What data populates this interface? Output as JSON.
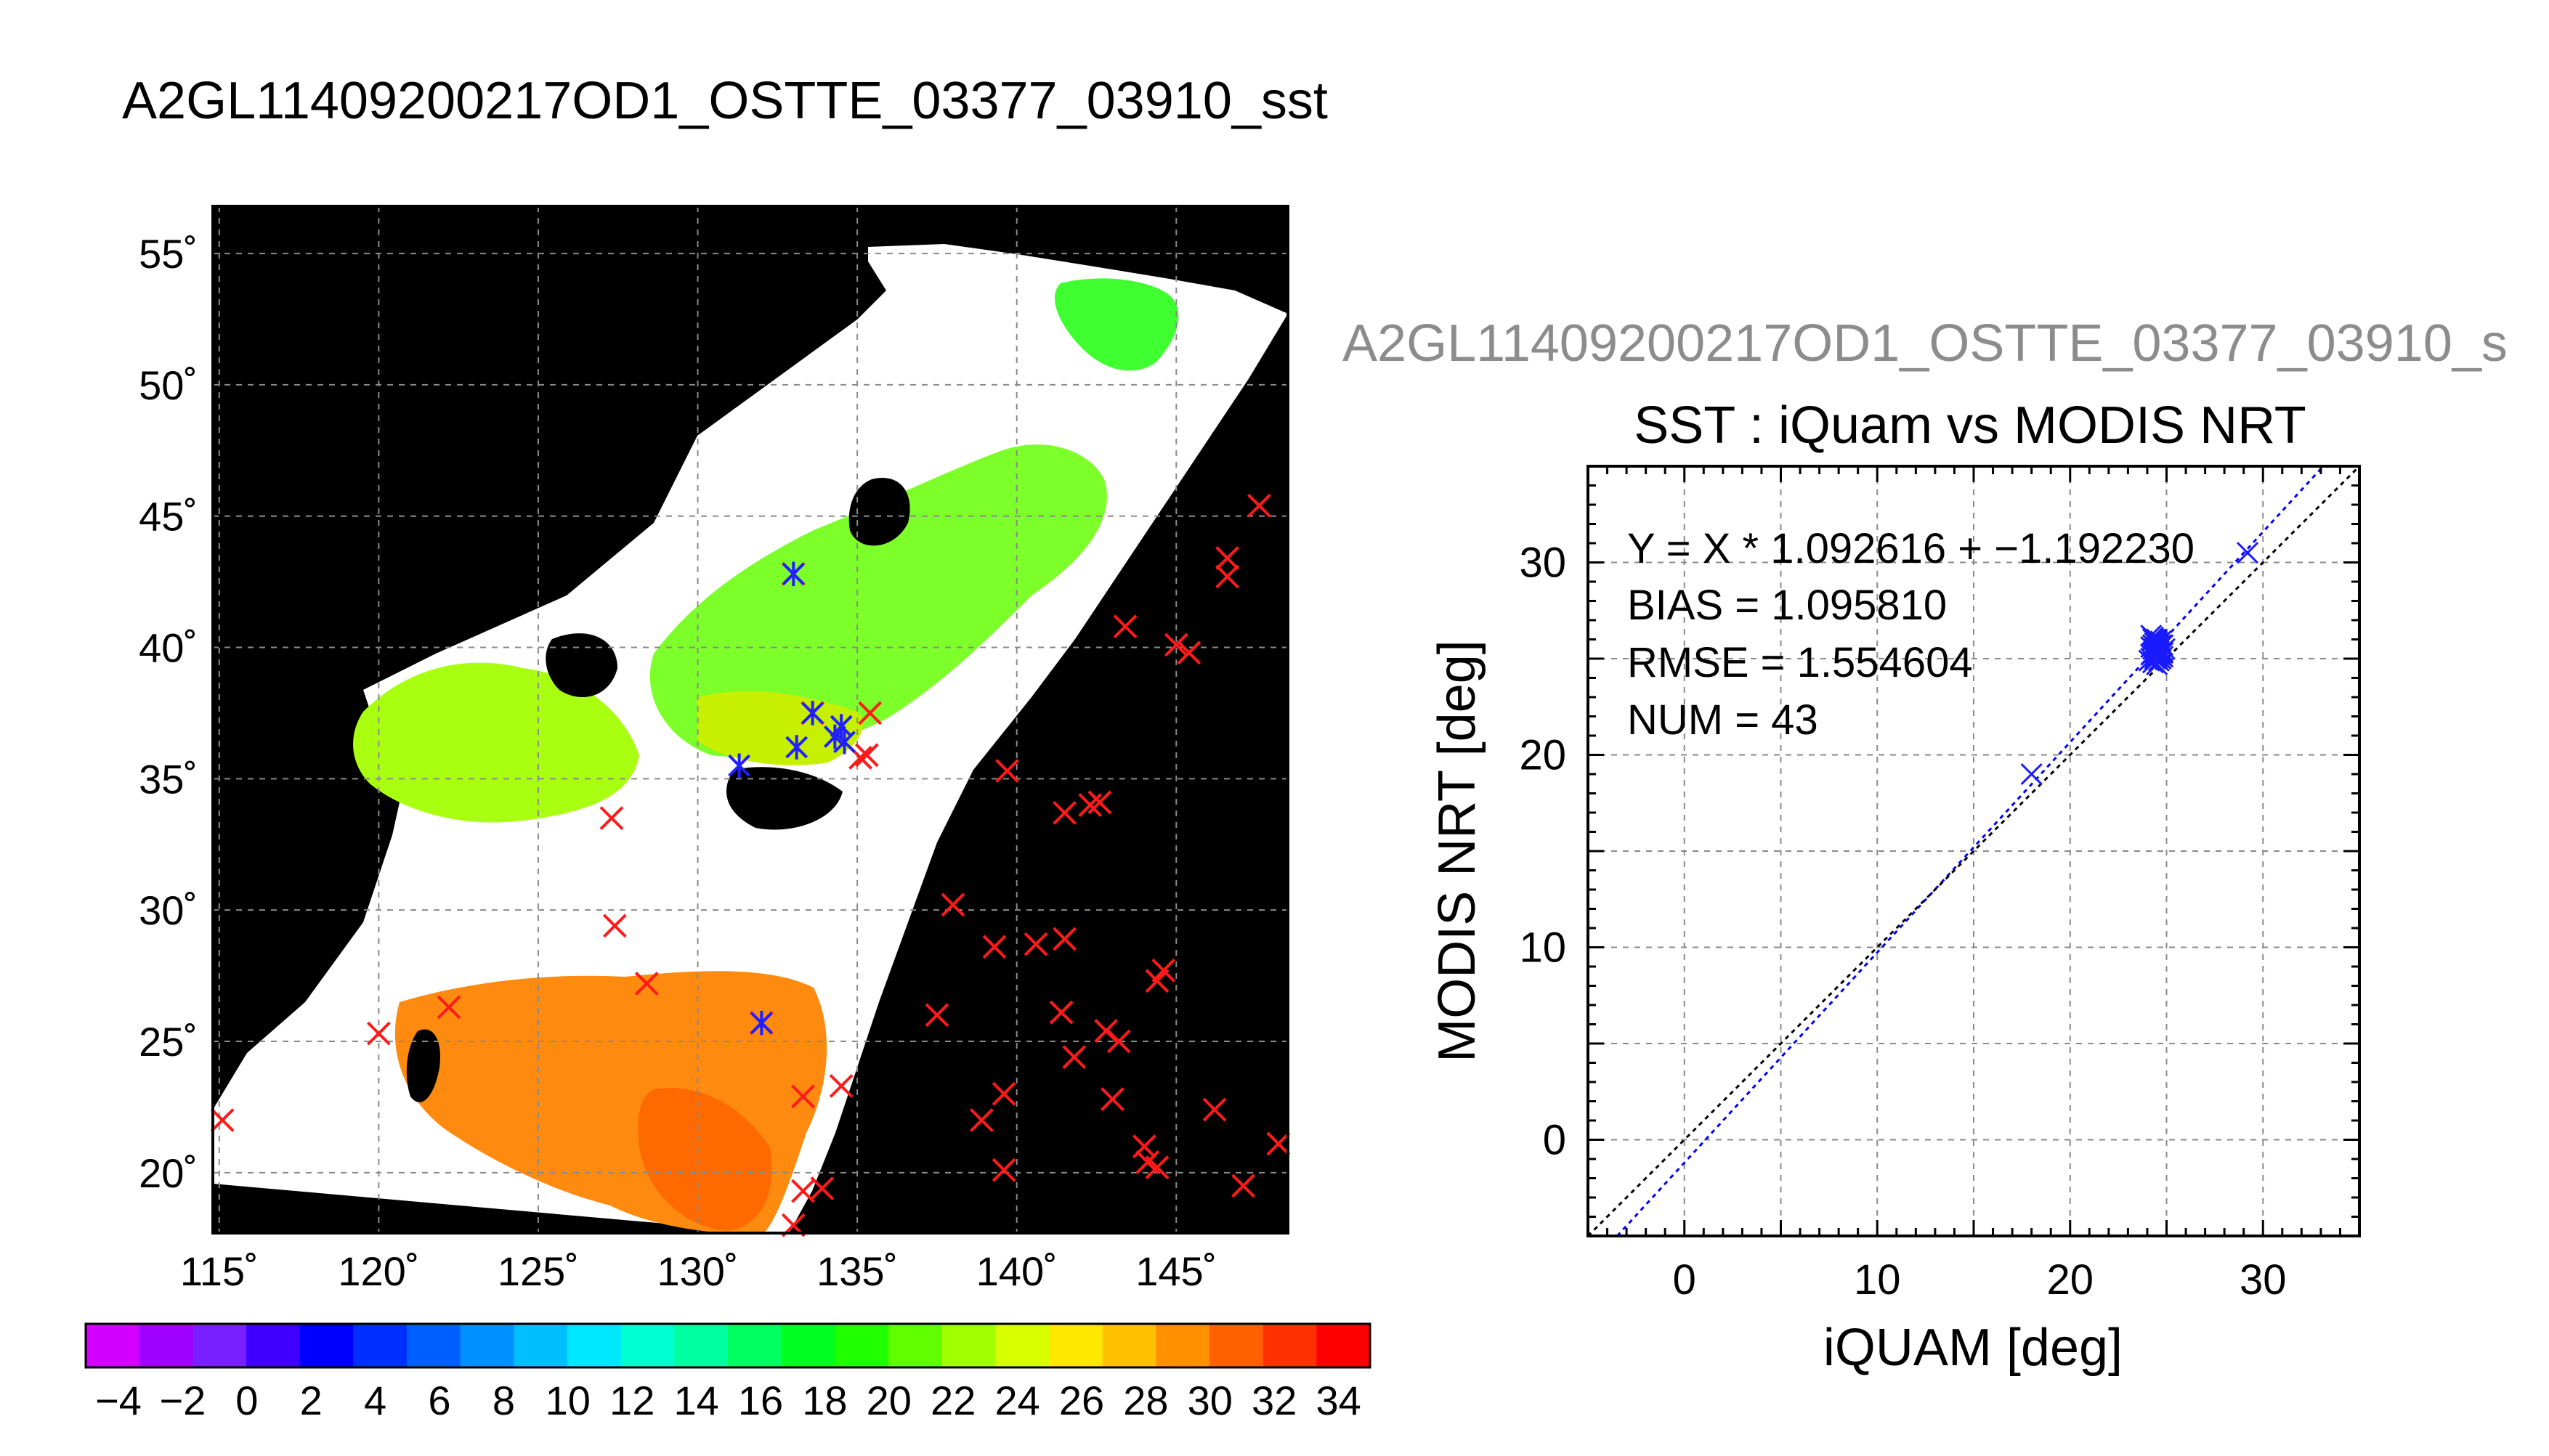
{
  "page_title": "A2GL11409200217OD1_OSTTE_03377_03910_sst",
  "map": {
    "lat_ticks": [
      "55˚",
      "50˚",
      "45˚",
      "40˚",
      "35˚",
      "30˚",
      "25˚",
      "20˚"
    ],
    "lon_ticks": [
      "115˚",
      "120˚",
      "125˚",
      "130˚",
      "135˚",
      "140˚",
      "145˚"
    ],
    "lat_values": [
      55,
      50,
      45,
      40,
      35,
      30,
      25,
      20
    ],
    "lon_values": [
      115,
      120,
      125,
      130,
      135,
      140,
      145
    ],
    "lat_range": [
      17.7,
      56.8
    ],
    "lon_range": [
      114.8,
      148.5
    ],
    "background_color": "#000000",
    "swath_color": "#ffffff",
    "red_markers": [
      [
        115.1,
        22.0
      ],
      [
        120.0,
        25.3
      ],
      [
        122.2,
        26.3
      ],
      [
        127.3,
        33.5
      ],
      [
        127.4,
        29.4
      ],
      [
        128.4,
        27.2
      ],
      [
        132.0,
        25.7
      ],
      [
        133.3,
        22.9
      ],
      [
        133.3,
        19.3
      ],
      [
        133.9,
        19.4
      ],
      [
        133.0,
        18.0
      ],
      [
        134.5,
        23.3
      ],
      [
        137.5,
        26.0
      ],
      [
        138.0,
        30.2
      ],
      [
        138.9,
        22.0
      ],
      [
        139.3,
        28.6
      ],
      [
        139.6,
        23.0
      ],
      [
        139.6,
        20.1
      ],
      [
        139.7,
        35.3
      ],
      [
        140.6,
        28.7
      ],
      [
        141.4,
        26.1
      ],
      [
        141.5,
        33.7
      ],
      [
        141.5,
        28.9
      ],
      [
        141.8,
        24.4
      ],
      [
        142.3,
        34.0
      ],
      [
        142.6,
        34.1
      ],
      [
        142.8,
        25.4
      ],
      [
        143.0,
        22.8
      ],
      [
        143.2,
        25.0
      ],
      [
        143.4,
        40.8
      ],
      [
        144.0,
        21.0
      ],
      [
        144.1,
        20.4
      ],
      [
        144.4,
        27.3
      ],
      [
        144.4,
        20.2
      ],
      [
        144.6,
        27.7
      ],
      [
        145.0,
        40.1
      ],
      [
        145.4,
        39.8
      ],
      [
        146.2,
        22.4
      ],
      [
        146.6,
        43.4
      ],
      [
        146.6,
        42.7
      ],
      [
        147.1,
        19.5
      ],
      [
        147.6,
        45.4
      ],
      [
        148.2,
        21.1
      ],
      [
        135.1,
        35.8
      ],
      [
        135.3,
        35.9
      ],
      [
        135.4,
        37.5
      ],
      [
        133.0,
        42.8
      ],
      [
        133.6,
        37.5
      ]
    ],
    "blue_markers": [
      [
        133.0,
        42.8
      ],
      [
        133.6,
        37.5
      ],
      [
        133.1,
        36.2
      ],
      [
        134.3,
        36.6
      ],
      [
        134.5,
        37.0
      ],
      [
        134.6,
        36.4
      ],
      [
        132.0,
        25.7
      ],
      [
        131.3,
        35.5
      ]
    ]
  },
  "colorbar": {
    "labels": [
      "−4",
      "−2",
      "0",
      "2",
      "4",
      "6",
      "8",
      "10",
      "12",
      "14",
      "16",
      "18",
      "20",
      "22",
      "24",
      "26",
      "28",
      "30",
      "32",
      "34"
    ],
    "colors": [
      "#d400ff",
      "#a000ff",
      "#7820ff",
      "#4000ff",
      "#0000ff",
      "#0030ff",
      "#0060ff",
      "#0090ff",
      "#00bfff",
      "#00e8ff",
      "#00ffd0",
      "#00ffa0",
      "#00ff60",
      "#00ff20",
      "#20ff00",
      "#60ff00",
      "#a0ff00",
      "#d8ff00",
      "#ffe800",
      "#ffc000",
      "#ff9000",
      "#ff6000",
      "#ff3000",
      "#ff0000"
    ]
  },
  "scatter_panel": {
    "file_label": "A2GL11409200217OD1_OSTTE_03377_03910_s",
    "title": "SST : iQuam vs MODIS NRT",
    "xlabel": "iQUAM [deg]",
    "ylabel": "MODIS NRT [deg]",
    "x_ticks": [
      "0",
      "10",
      "20",
      "30"
    ],
    "y_ticks": [
      "0",
      "10",
      "20",
      "30"
    ],
    "stats": {
      "fit": "Y = X * 1.092616 + −1.192230",
      "bias": "BIAS = 1.095810",
      "rmse": "RMSE = 1.554604",
      "num": "NUM = 43"
    }
  },
  "chart_data": {
    "type": "scatter",
    "title": "SST : iQuam vs MODIS NRT",
    "xlabel": "iQUAM [deg]",
    "ylabel": "MODIS NRT [deg]",
    "xlim": [
      -5,
      35
    ],
    "ylim": [
      -5,
      35
    ],
    "x_ticks": [
      0,
      10,
      20,
      30
    ],
    "y_ticks": [
      0,
      10,
      20,
      30
    ],
    "grid": true,
    "series": [
      {
        "x": [
          18.0,
          24.1,
          24.2,
          24.3,
          24.3,
          24.4,
          24.4,
          24.5,
          24.5,
          24.5,
          24.6,
          24.6,
          24.7,
          24.7,
          24.8,
          24.8,
          24.9,
          24.2,
          24.4,
          24.6,
          24.3,
          24.5,
          24.7,
          24.2,
          24.4,
          24.6,
          24.8,
          24.3,
          24.5,
          24.7,
          24.4,
          24.6,
          24.2,
          24.5,
          24.3,
          24.7,
          24.4,
          24.6,
          24.5,
          24.8,
          24.3,
          24.6,
          29.2
        ],
        "y": [
          19.0,
          24.9,
          25.2,
          25.5,
          24.8,
          25.0,
          25.8,
          25.1,
          25.4,
          26.0,
          25.3,
          25.6,
          25.2,
          25.9,
          25.4,
          25.7,
          25.5,
          25.6,
          25.3,
          24.9,
          26.1,
          24.7,
          25.0,
          26.2,
          25.5,
          25.8,
          25.1,
          25.7,
          25.9,
          25.3,
          26.0,
          25.2,
          25.0,
          25.6,
          25.3,
          25.7,
          25.1,
          25.4,
          25.8,
          25.3,
          26.0,
          25.5,
          30.5
        ]
      }
    ],
    "lines": [
      {
        "style": "regression",
        "slope": 1.092616,
        "intercept": -1.19223,
        "color": "#0000ff"
      },
      {
        "style": "identity",
        "slope": 1,
        "intercept": 0,
        "color": "#000000"
      }
    ]
  }
}
